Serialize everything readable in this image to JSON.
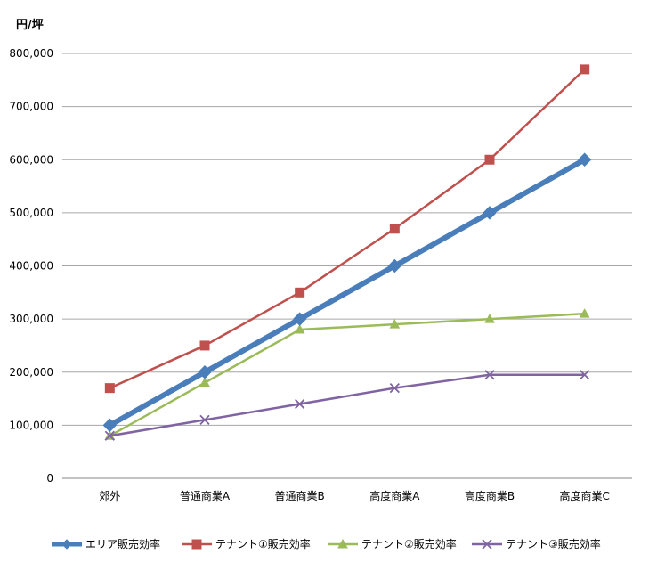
{
  "chart_data": {
    "type": "line",
    "ylabel": "円/坪",
    "ylim": [
      0,
      800000
    ],
    "yticks": [
      0,
      100000,
      200000,
      300000,
      400000,
      500000,
      600000,
      700000,
      800000
    ],
    "ytick_labels": [
      "0",
      "100,000",
      "200,000",
      "300,000",
      "400,000",
      "500,000",
      "600,000",
      "700,000",
      "800,000"
    ],
    "grid": true,
    "legend_position": "bottom",
    "categories": [
      "郊外",
      "普通商業A",
      "普通商業B",
      "高度商業A",
      "高度商業B",
      "高度商業C"
    ],
    "series": [
      {
        "name": "エリア販売効率",
        "values": [
          100000,
          200000,
          300000,
          400000,
          500000,
          600000
        ],
        "color": "#4a7ebb",
        "marker": "diamond"
      },
      {
        "name": "テナント①販売効率",
        "values": [
          170000,
          250000,
          350000,
          470000,
          600000,
          770000
        ],
        "color": "#c0504d",
        "marker": "square"
      },
      {
        "name": "テナント②販売効率",
        "values": [
          80000,
          180000,
          280000,
          290000,
          300000,
          310000
        ],
        "color": "#9bbb59",
        "marker": "triangle"
      },
      {
        "name": "テナント③販売効率",
        "values": [
          80000,
          110000,
          140000,
          170000,
          195000,
          195000
        ],
        "color": "#8064a2",
        "marker": "x"
      }
    ]
  }
}
